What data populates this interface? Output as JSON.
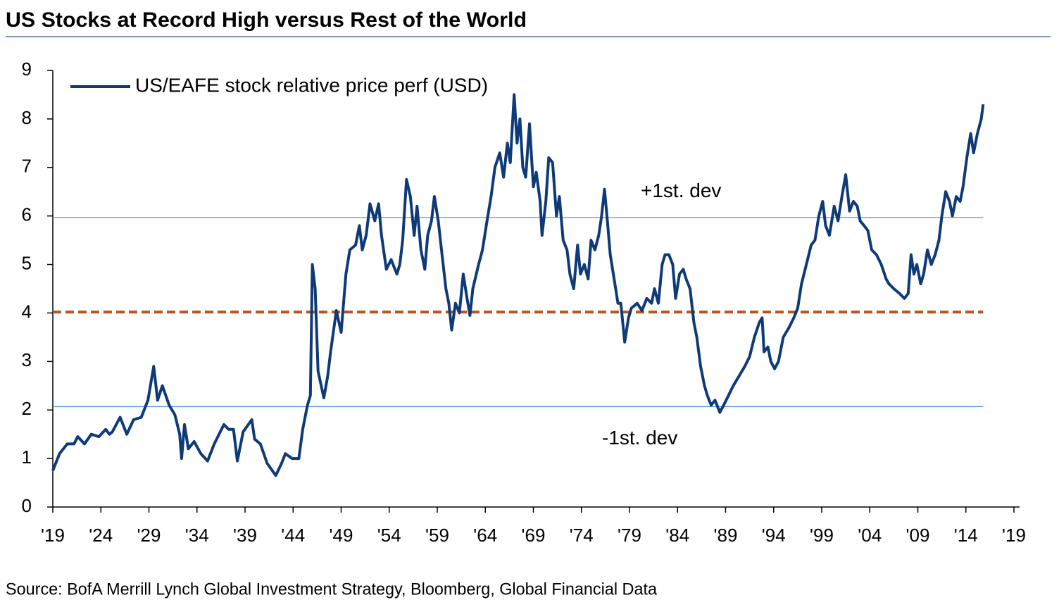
{
  "chart_data": {
    "type": "line",
    "title": "US Stocks at Record High versus Rest of the World",
    "source": "Source: BofA Merrill Lynch Global Investment Strategy, Bloomberg, Global Financial Data",
    "xlim": [
      1919,
      2019
    ],
    "ylim": [
      0,
      9
    ],
    "yticks": [
      0,
      1,
      2,
      3,
      4,
      5,
      6,
      7,
      8,
      9
    ],
    "xticks": [
      {
        "value": 1919,
        "label": "'19"
      },
      {
        "value": 1924,
        "label": "'24"
      },
      {
        "value": 1929,
        "label": "'29"
      },
      {
        "value": 1934,
        "label": "'34"
      },
      {
        "value": 1939,
        "label": "'39"
      },
      {
        "value": 1944,
        "label": "'44"
      },
      {
        "value": 1949,
        "label": "'49"
      },
      {
        "value": 1954,
        "label": "'54"
      },
      {
        "value": 1959,
        "label": "'59"
      },
      {
        "value": 1964,
        "label": "'64"
      },
      {
        "value": 1969,
        "label": "'69"
      },
      {
        "value": 1974,
        "label": "'74"
      },
      {
        "value": 1979,
        "label": "'79"
      },
      {
        "value": 1984,
        "label": "'84"
      },
      {
        "value": 1989,
        "label": "'89"
      },
      {
        "value": 1994,
        "label": "'94"
      },
      {
        "value": 1999,
        "label": "'99"
      },
      {
        "value": 2004,
        "label": "'04"
      },
      {
        "value": 2009,
        "label": "'09"
      },
      {
        "value": 2014,
        "label": "'14"
      },
      {
        "value": 2019,
        "label": "'19"
      }
    ],
    "reference_lines": [
      {
        "label": "+1st. dev",
        "value": 5.97,
        "color": "#4aa3d8"
      },
      {
        "label": "-1st. dev",
        "value": 2.07,
        "color": "#4aa3d8"
      },
      {
        "value": 4.02,
        "color": "#b5561e"
      }
    ],
    "legend": "upper left",
    "x": [
      1919.0,
      1919.7,
      1920.5,
      1921.2,
      1921.6,
      1922.3,
      1923.0,
      1923.8,
      1924.5,
      1924.9,
      1925.2,
      1926.0,
      1926.7,
      1927.4,
      1928.2,
      1928.9,
      1929.5,
      1929.9,
      1930.4,
      1931.1,
      1931.7,
      1932.2,
      1932.4,
      1932.7,
      1933.1,
      1933.7,
      1934.4,
      1935.1,
      1935.8,
      1936.8,
      1937.3,
      1937.8,
      1938.2,
      1938.8,
      1939.7,
      1940.0,
      1940.6,
      1941.3,
      1942.2,
      1942.8,
      1943.2,
      1943.9,
      1944.6,
      1945.0,
      1945.5,
      1945.8,
      1946.0,
      1946.3,
      1946.6,
      1947.2,
      1947.6,
      1947.9,
      1948.5,
      1949.0,
      1949.5,
      1949.9,
      1950.5,
      1950.9,
      1951.2,
      1951.6,
      1952.0,
      1952.5,
      1952.9,
      1953.2,
      1953.7,
      1954.2,
      1954.8,
      1955.1,
      1955.4,
      1955.8,
      1956.2,
      1956.6,
      1956.9,
      1957.3,
      1957.7,
      1958.0,
      1958.4,
      1958.7,
      1959.1,
      1959.5,
      1959.9,
      1960.2,
      1960.5,
      1960.9,
      1961.3,
      1961.7,
      1962.1,
      1962.4,
      1962.7,
      1963.3,
      1963.7,
      1964.1,
      1964.6,
      1965.0,
      1965.5,
      1965.9,
      1966.3,
      1966.6,
      1967.0,
      1967.3,
      1967.6,
      1967.9,
      1968.2,
      1968.6,
      1969.0,
      1969.3,
      1969.7,
      1969.9,
      1970.3,
      1970.6,
      1971.0,
      1971.4,
      1971.7,
      1972.1,
      1972.5,
      1972.8,
      1973.2,
      1973.6,
      1973.9,
      1974.3,
      1974.7,
      1975.0,
      1975.4,
      1975.8,
      1976.1,
      1976.4,
      1976.7,
      1977.0,
      1977.4,
      1977.8,
      1978.1,
      1978.5,
      1978.9,
      1979.2,
      1979.8,
      1980.3,
      1980.8,
      1981.3,
      1981.6,
      1982.0,
      1982.4,
      1982.7,
      1983.1,
      1983.5,
      1983.8,
      1984.2,
      1984.6,
      1984.9,
      1985.3,
      1985.7,
      1986.0,
      1986.4,
      1986.8,
      1987.1,
      1987.5,
      1987.9,
      1988.4,
      1988.8,
      1989.3,
      1989.8,
      1990.4,
      1991.0,
      1991.5,
      1992.0,
      1992.5,
      1992.8,
      1993.0,
      1993.4,
      1993.7,
      1994.1,
      1994.5,
      1995.0,
      1995.6,
      1996.1,
      1996.5,
      1996.9,
      1997.4,
      1997.9,
      1998.3,
      1998.7,
      1999.1,
      1999.4,
      1999.8,
      2000.3,
      2000.7,
      2001.1,
      2001.5,
      2001.9,
      2002.3,
      2002.7,
      2003.0,
      2003.4,
      2003.8,
      2004.2,
      2004.7,
      2005.2,
      2005.7,
      2006.0,
      2006.5,
      2007.1,
      2007.6,
      2008.0,
      2008.3,
      2008.6,
      2008.9,
      2009.3,
      2009.6,
      2010.0,
      2010.4,
      2010.8,
      2011.2,
      2011.5,
      2011.9,
      2012.3,
      2012.6,
      2013.0,
      2013.4,
      2013.7,
      2014.1,
      2014.5,
      2014.8,
      2015.2,
      2015.6,
      2015.8
    ],
    "series": [
      {
        "name": "US/EAFE stock relative price perf (USD)",
        "color": "#0e3a78",
        "values": [
          0.75,
          1.1,
          1.3,
          1.3,
          1.45,
          1.3,
          1.5,
          1.45,
          1.6,
          1.5,
          1.55,
          1.85,
          1.5,
          1.8,
          1.85,
          2.2,
          2.9,
          2.2,
          2.5,
          2.1,
          1.9,
          1.5,
          1.0,
          1.7,
          1.2,
          1.35,
          1.1,
          0.95,
          1.3,
          1.7,
          1.6,
          1.6,
          0.95,
          1.55,
          1.8,
          1.4,
          1.3,
          0.9,
          0.65,
          0.9,
          1.1,
          1.0,
          1.0,
          1.6,
          2.1,
          2.3,
          5.0,
          4.5,
          2.8,
          2.25,
          2.7,
          3.2,
          4.05,
          3.6,
          4.8,
          5.3,
          5.4,
          5.8,
          5.3,
          5.6,
          6.25,
          5.9,
          6.25,
          5.6,
          4.9,
          5.1,
          4.8,
          5.0,
          5.5,
          6.75,
          6.4,
          5.6,
          6.2,
          5.3,
          4.9,
          5.6,
          5.9,
          6.4,
          5.9,
          5.2,
          4.5,
          4.2,
          3.65,
          4.2,
          4.0,
          4.8,
          4.3,
          3.95,
          4.5,
          5.0,
          5.3,
          5.8,
          6.4,
          7.0,
          7.3,
          6.8,
          7.5,
          7.1,
          8.5,
          7.5,
          8.0,
          7.0,
          6.8,
          7.9,
          6.6,
          6.9,
          6.3,
          5.6,
          6.3,
          7.2,
          7.1,
          6.0,
          6.4,
          5.5,
          5.3,
          4.8,
          4.5,
          5.4,
          4.8,
          5.0,
          4.7,
          5.5,
          5.3,
          5.6,
          6.0,
          6.55,
          5.9,
          5.2,
          4.7,
          4.2,
          4.2,
          3.4,
          3.9,
          4.1,
          4.2,
          4.05,
          4.3,
          4.2,
          4.5,
          4.2,
          5.0,
          5.2,
          5.2,
          5.0,
          4.3,
          4.8,
          4.9,
          4.7,
          4.5,
          3.8,
          3.5,
          2.9,
          2.5,
          2.3,
          2.1,
          2.2,
          1.95,
          2.1,
          2.3,
          2.5,
          2.7,
          2.9,
          3.1,
          3.5,
          3.8,
          3.9,
          3.2,
          3.3,
          3.0,
          2.85,
          3.0,
          3.5,
          3.7,
          3.9,
          4.1,
          4.6,
          5.0,
          5.4,
          5.5,
          6.0,
          6.3,
          5.8,
          5.6,
          6.2,
          5.9,
          6.4,
          6.85,
          6.1,
          6.3,
          6.2,
          5.9,
          5.8,
          5.7,
          5.3,
          5.2,
          5.0,
          4.7,
          4.6,
          4.5,
          4.4,
          4.3,
          4.4,
          5.2,
          4.8,
          5.0,
          4.6,
          4.8,
          5.3,
          5.0,
          5.2,
          5.5,
          6.0,
          6.5,
          6.3,
          6.0,
          6.4,
          6.3,
          6.6,
          7.2,
          7.7,
          7.3,
          7.7,
          8.0,
          8.3
        ]
      }
    ]
  }
}
